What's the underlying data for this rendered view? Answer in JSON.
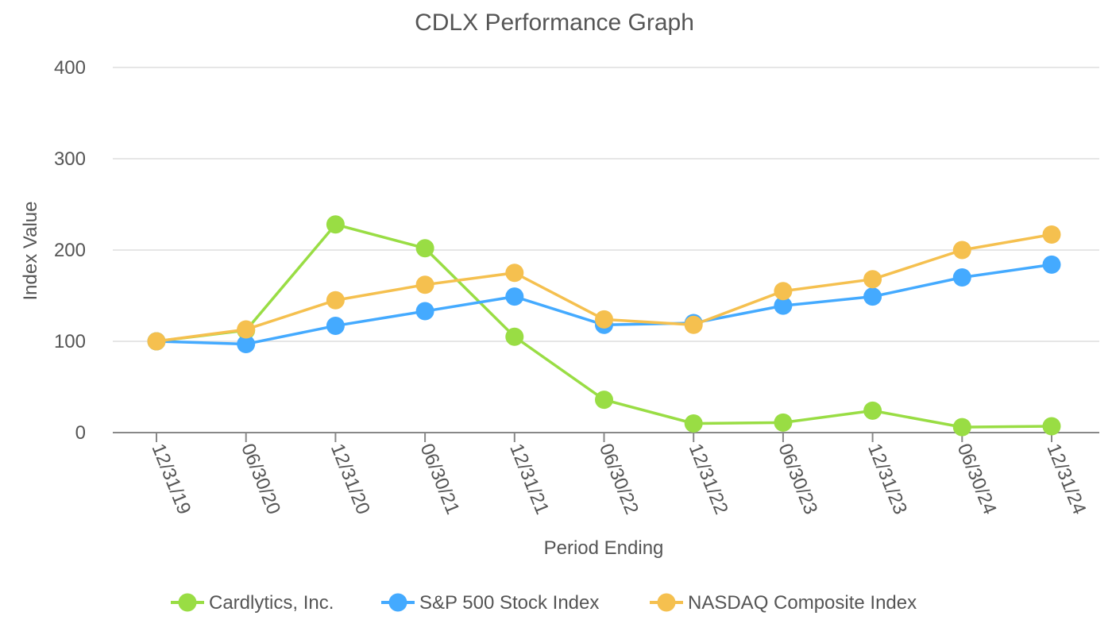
{
  "chart_data": {
    "type": "line",
    "title": "CDLX Performance Graph",
    "xlabel": "Period Ending",
    "ylabel": "Index Value",
    "ylim": [
      0,
      400
    ],
    "yticks": [
      0,
      100,
      200,
      300,
      400
    ],
    "categories": [
      "12/31/19",
      "06/30/20",
      "12/31/20",
      "06/30/21",
      "12/31/21",
      "06/30/22",
      "12/31/22",
      "06/30/23",
      "12/31/23",
      "06/30/24",
      "12/31/24"
    ],
    "series": [
      {
        "name": "Cardlytics, Inc.",
        "color": "#99dd44",
        "values": [
          100,
          112,
          228,
          202,
          105,
          36,
          10,
          11,
          24,
          6,
          7
        ]
      },
      {
        "name": "S&P 500 Stock Index",
        "color": "#44aaff",
        "values": [
          100,
          97,
          117,
          133,
          149,
          118,
          120,
          139,
          149,
          170,
          184
        ]
      },
      {
        "name": "NASDAQ Composite Index",
        "color": "#f5c04f",
        "values": [
          100,
          113,
          145,
          162,
          175,
          124,
          118,
          155,
          168,
          200,
          217
        ]
      }
    ],
    "legend_position": "bottom"
  }
}
